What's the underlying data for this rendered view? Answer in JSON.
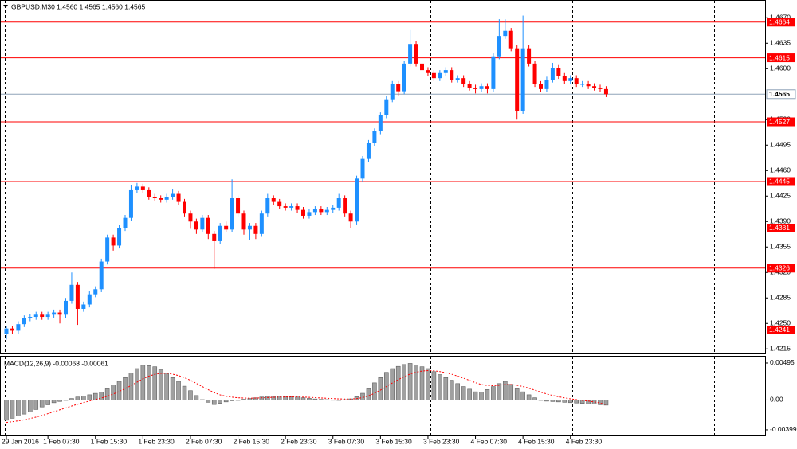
{
  "chart_data": [
    {
      "type": "candlestick",
      "title": "GBPUSD,M30  1.4560 1.4565 1.4560 1.4565",
      "categories": [
        "29 Jan 2016",
        null,
        null,
        null,
        null,
        null,
        null,
        "1 Feb 07:30",
        null,
        null,
        null,
        null,
        null,
        null,
        null,
        "1 Feb 15:30",
        null,
        null,
        null,
        null,
        null,
        null,
        null,
        "1 Feb 23:30",
        null,
        null,
        null,
        null,
        null,
        null,
        null,
        "2 Feb 07:30",
        null,
        null,
        null,
        null,
        null,
        null,
        null,
        "2 Feb 15:30",
        null,
        null,
        null,
        null,
        null,
        null,
        null,
        "2 Feb 23:30",
        null,
        null,
        null,
        null,
        null,
        null,
        null,
        "3 Feb 07:30",
        null,
        null,
        null,
        null,
        null,
        null,
        null,
        "3 Feb 15:30",
        null,
        null,
        null,
        null,
        null,
        null,
        null,
        "3 Feb 23:30",
        null,
        null,
        null,
        null,
        null,
        null,
        null,
        "4 Feb 07:30",
        null,
        null,
        null,
        null,
        null,
        null,
        null,
        "4 Feb 15:30",
        null,
        null,
        null,
        null,
        null,
        null,
        null,
        "4 Feb 23:30",
        null,
        null,
        null,
        null,
        null,
        null
      ],
      "open": [
        1.4235,
        1.4243,
        1.424,
        1.4249,
        1.4257,
        1.4259,
        1.4262,
        1.4259,
        1.4262,
        1.4265,
        1.4262,
        1.4281,
        1.4303,
        1.427,
        1.4276,
        1.429,
        1.4297,
        1.4335,
        1.4368,
        1.4357,
        1.4381,
        1.4395,
        1.4433,
        1.4438,
        1.4433,
        1.4424,
        1.4422,
        1.442,
        1.4424,
        1.4428,
        1.4417,
        1.4401,
        1.439,
        1.4379,
        1.4395,
        1.4373,
        1.4363,
        1.4384,
        1.4379,
        1.4422,
        1.4401,
        1.4379,
        1.4384,
        1.4373,
        1.4401,
        1.4422,
        1.4417,
        1.4411,
        1.4409,
        1.4411,
        1.4406,
        1.4398,
        1.4403,
        1.4407,
        1.4403,
        1.4406,
        1.4409,
        1.4422,
        1.4401,
        1.439,
        1.4449,
        1.4476,
        1.4498,
        1.4514,
        1.4536,
        1.4558,
        1.4579,
        1.4569,
        1.4607,
        1.4634,
        1.4607,
        1.4598,
        1.4594,
        1.4587,
        1.4594,
        1.4598,
        1.4585,
        1.4587,
        1.4579,
        1.4574,
        1.4572,
        1.4576,
        1.4572,
        1.4617,
        1.4645,
        1.4652,
        1.4628,
        1.4542,
        1.4628,
        1.4607,
        1.4579,
        1.4572,
        1.4585,
        1.4601,
        1.459,
        1.4583,
        1.4587,
        1.4579,
        1.4579,
        1.4576,
        1.4574,
        1.4572
      ],
      "high": [
        1.4247,
        1.4247,
        1.4253,
        1.4261,
        1.4263,
        1.4266,
        1.4266,
        1.4266,
        1.4269,
        1.4269,
        1.4285,
        1.432,
        1.4307,
        1.428,
        1.4294,
        1.4301,
        1.4339,
        1.4372,
        1.4372,
        1.4385,
        1.4399,
        1.444,
        1.4443,
        1.4442,
        1.4437,
        1.4428,
        1.4426,
        1.4428,
        1.4434,
        1.4432,
        1.4421,
        1.4405,
        1.4394,
        1.4399,
        1.4399,
        1.4377,
        1.4388,
        1.439,
        1.4448,
        1.4426,
        1.4405,
        1.4388,
        1.4388,
        1.4405,
        1.4428,
        1.4426,
        1.4421,
        1.4415,
        1.4415,
        1.4415,
        1.441,
        1.4407,
        1.4411,
        1.4411,
        1.441,
        1.4413,
        1.4428,
        1.4426,
        1.4405,
        1.4453,
        1.448,
        1.4502,
        1.4518,
        1.454,
        1.4562,
        1.4583,
        1.4583,
        1.4611,
        1.4653,
        1.4638,
        1.4611,
        1.4602,
        1.4598,
        1.4598,
        1.4602,
        1.4602,
        1.4591,
        1.4591,
        1.4583,
        1.4578,
        1.458,
        1.458,
        1.4621,
        1.4668,
        1.4668,
        1.4656,
        1.4632,
        1.4673,
        1.4632,
        1.4611,
        1.4583,
        1.4589,
        1.4608,
        1.4605,
        1.4594,
        1.4591,
        1.4591,
        1.4583,
        1.4583,
        1.458,
        1.4578,
        1.4576
      ],
      "low": [
        1.4228,
        1.4236,
        1.4236,
        1.4245,
        1.4253,
        1.4255,
        1.4255,
        1.4255,
        1.4258,
        1.425,
        1.4258,
        1.4277,
        1.4248,
        1.4266,
        1.4272,
        1.4286,
        1.4293,
        1.4331,
        1.435,
        1.4353,
        1.4377,
        1.4391,
        1.4429,
        1.4429,
        1.442,
        1.4418,
        1.4416,
        1.4416,
        1.442,
        1.4413,
        1.4397,
        1.438,
        1.4373,
        1.4375,
        1.4366,
        1.4325,
        1.4359,
        1.4375,
        1.4375,
        1.4397,
        1.4372,
        1.4365,
        1.4366,
        1.4369,
        1.4397,
        1.4413,
        1.4407,
        1.4405,
        1.4405,
        1.4402,
        1.4394,
        1.4394,
        1.4399,
        1.4399,
        1.4399,
        1.4402,
        1.4405,
        1.4397,
        1.4381,
        1.4386,
        1.4445,
        1.4472,
        1.4494,
        1.451,
        1.4532,
        1.4554,
        1.4562,
        1.4565,
        1.4603,
        1.4603,
        1.4594,
        1.459,
        1.4583,
        1.4583,
        1.459,
        1.4581,
        1.4581,
        1.4575,
        1.457,
        1.4566,
        1.4568,
        1.4566,
        1.4568,
        1.4613,
        1.4641,
        1.4624,
        1.453,
        1.4538,
        1.4603,
        1.4575,
        1.4568,
        1.4568,
        1.4581,
        1.4586,
        1.4579,
        1.4579,
        1.4575,
        1.4575,
        1.4572,
        1.457,
        1.4568,
        1.4561
      ],
      "close": [
        1.4243,
        1.424,
        1.4249,
        1.4257,
        1.4259,
        1.4262,
        1.4259,
        1.4262,
        1.4265,
        1.4262,
        1.4281,
        1.4303,
        1.427,
        1.4276,
        1.429,
        1.4297,
        1.4335,
        1.4368,
        1.4357,
        1.4381,
        1.4395,
        1.4433,
        1.4438,
        1.4433,
        1.4424,
        1.4422,
        1.442,
        1.4424,
        1.4428,
        1.4417,
        1.4401,
        1.439,
        1.4379,
        1.4395,
        1.4373,
        1.4363,
        1.4384,
        1.4379,
        1.4422,
        1.4401,
        1.4379,
        1.4384,
        1.4373,
        1.4401,
        1.4422,
        1.4417,
        1.4411,
        1.4409,
        1.4411,
        1.4406,
        1.4398,
        1.4403,
        1.4407,
        1.4403,
        1.4406,
        1.4409,
        1.4422,
        1.4401,
        1.439,
        1.4449,
        1.4476,
        1.4498,
        1.4514,
        1.4536,
        1.4558,
        1.4579,
        1.4569,
        1.4607,
        1.4634,
        1.4607,
        1.4598,
        1.4594,
        1.4587,
        1.4594,
        1.4598,
        1.4585,
        1.4587,
        1.4579,
        1.4574,
        1.4572,
        1.4576,
        1.4572,
        1.4617,
        1.4645,
        1.4652,
        1.4628,
        1.4542,
        1.4628,
        1.4607,
        1.4579,
        1.4572,
        1.4585,
        1.4601,
        1.459,
        1.4583,
        1.4587,
        1.4579,
        1.4579,
        1.4576,
        1.4574,
        1.4572,
        1.4565
      ],
      "up_color": "#1e90ff",
      "down_color": "#ff0000",
      "ylim": [
        1.4212,
        1.469
      ],
      "yticks": [
        1.4215,
        {
          "value": 1.425,
          "label": "1.4250"
        },
        1.4285,
        {
          "value": 1.432,
          "label": "1.4320"
        },
        1.4355,
        {
          "value": 1.439,
          "label": "1.4390"
        },
        1.4425,
        {
          "value": 1.446,
          "label": "1.4460"
        },
        1.4495,
        {
          "value": 1.453,
          "label": "1.4530"
        },
        {
          "value": 1.46,
          "label": "1.4600"
        },
        1.4635,
        {
          "value": 1.467,
          "label": "1.4670"
        }
      ],
      "levels": [
        1.4664,
        1.4615,
        1.4527,
        1.4445,
        1.4381,
        1.4326,
        1.4241
      ],
      "level_color": "#ff0000",
      "last_price": 1.4565,
      "last_price_color": "#8fa3b8"
    },
    {
      "type": "macd",
      "title": "MACD(12,26,9) -0.00068 -0.00061",
      "values": [
        -0.0027,
        -0.00244,
        -0.00214,
        -0.00188,
        -0.00159,
        -0.00127,
        -0.00093,
        -0.00064,
        -0.00036,
        -0.00019,
        -4e-05,
        0.0002,
        0.0004,
        0.00054,
        0.0007,
        0.00089,
        0.00105,
        0.0015,
        0.002,
        0.0025,
        0.003,
        0.0036,
        0.0042,
        0.00465,
        0.0046,
        0.00445,
        0.0041,
        0.0036,
        0.003,
        0.0025,
        0.00185,
        0.00125,
        0.0006,
        5e-05,
        -0.0003,
        -0.0006,
        -0.00045,
        -0.00025,
        -0.0001,
        0,
        0.0001,
        0.0002,
        0.0003,
        0.0004,
        0.0005,
        0.00052,
        0.0005,
        0.00048,
        0.00045,
        0.0004,
        0.0003,
        0.00022,
        0.00014,
        8e-05,
        5e-05,
        2e-05,
        0,
        5e-05,
        0.00015,
        0.00045,
        0.0009,
        0.0015,
        0.0023,
        0.003,
        0.0037,
        0.0042,
        0.0045,
        0.00475,
        0.0049,
        0.0047,
        0.00445,
        0.0042,
        0.0038,
        0.0034,
        0.003,
        0.00265,
        0.0022,
        0.0018,
        0.00145,
        0.0011,
        0.00105,
        0.0014,
        0.0018,
        0.0022,
        0.0025,
        0.0021,
        0.0015,
        0.0011,
        0.0007,
        0.0003,
        0,
        -0.00015,
        -0.0002,
        -0.00025,
        -0.0003,
        -0.00035,
        -0.0004,
        -0.00045,
        -0.0005,
        -0.00055,
        -0.00062,
        -0.00068
      ],
      "signal": [
        -0.003,
        -0.0029,
        -0.00278,
        -0.00264,
        -0.00247,
        -0.00228,
        -0.00206,
        -0.00182,
        -0.00157,
        -0.00131,
        -0.00106,
        -0.0008,
        -0.00056,
        -0.00034,
        -0.00013,
        7e-05,
        0.00026,
        0.00051,
        0.00081,
        0.00115,
        0.00152,
        0.00194,
        0.00239,
        0.00284,
        0.00319,
        0.00344,
        0.00357,
        0.00358,
        0.00346,
        0.00327,
        0.00298,
        0.00264,
        0.00223,
        0.0018,
        0.00138,
        0.00098,
        0.00069,
        0.0005,
        0.00038,
        0.0003,
        0.00026,
        0.00025,
        0.00026,
        0.00029,
        0.00033,
        0.00037,
        0.00039,
        0.00041,
        0.00042,
        0.00041,
        0.00039,
        0.00036,
        0.00032,
        0.00027,
        0.00023,
        0.00019,
        0.00015,
        0.00013,
        0.00013,
        0.00019,
        0.00033,
        0.00056,
        0.0009,
        0.00132,
        0.0018,
        0.00228,
        0.00272,
        0.00313,
        0.00348,
        0.00372,
        0.00387,
        0.00394,
        0.00391,
        0.00381,
        0.00365,
        0.00345,
        0.0032,
        0.00292,
        0.00263,
        0.00232,
        0.00207,
        0.00194,
        0.00191,
        0.00197,
        0.00208,
        0.00208,
        0.00197,
        0.0018,
        0.00158,
        0.00132,
        0.00106,
        0.00081,
        0.00061,
        0.00044,
        0.00029,
        0.00016,
        5e-05,
        -5e-05,
        -0.00014,
        -0.00025,
        -0.0004,
        -0.00061
      ],
      "color": "#a0a0a0",
      "signal_color": "#ff0000",
      "ylim": [
        -0.00474,
        0.0058
      ],
      "yticks": [
        0.00495,
        {
          "value": 0,
          "label": "0.00"
        },
        -0.00399
      ]
    }
  ]
}
